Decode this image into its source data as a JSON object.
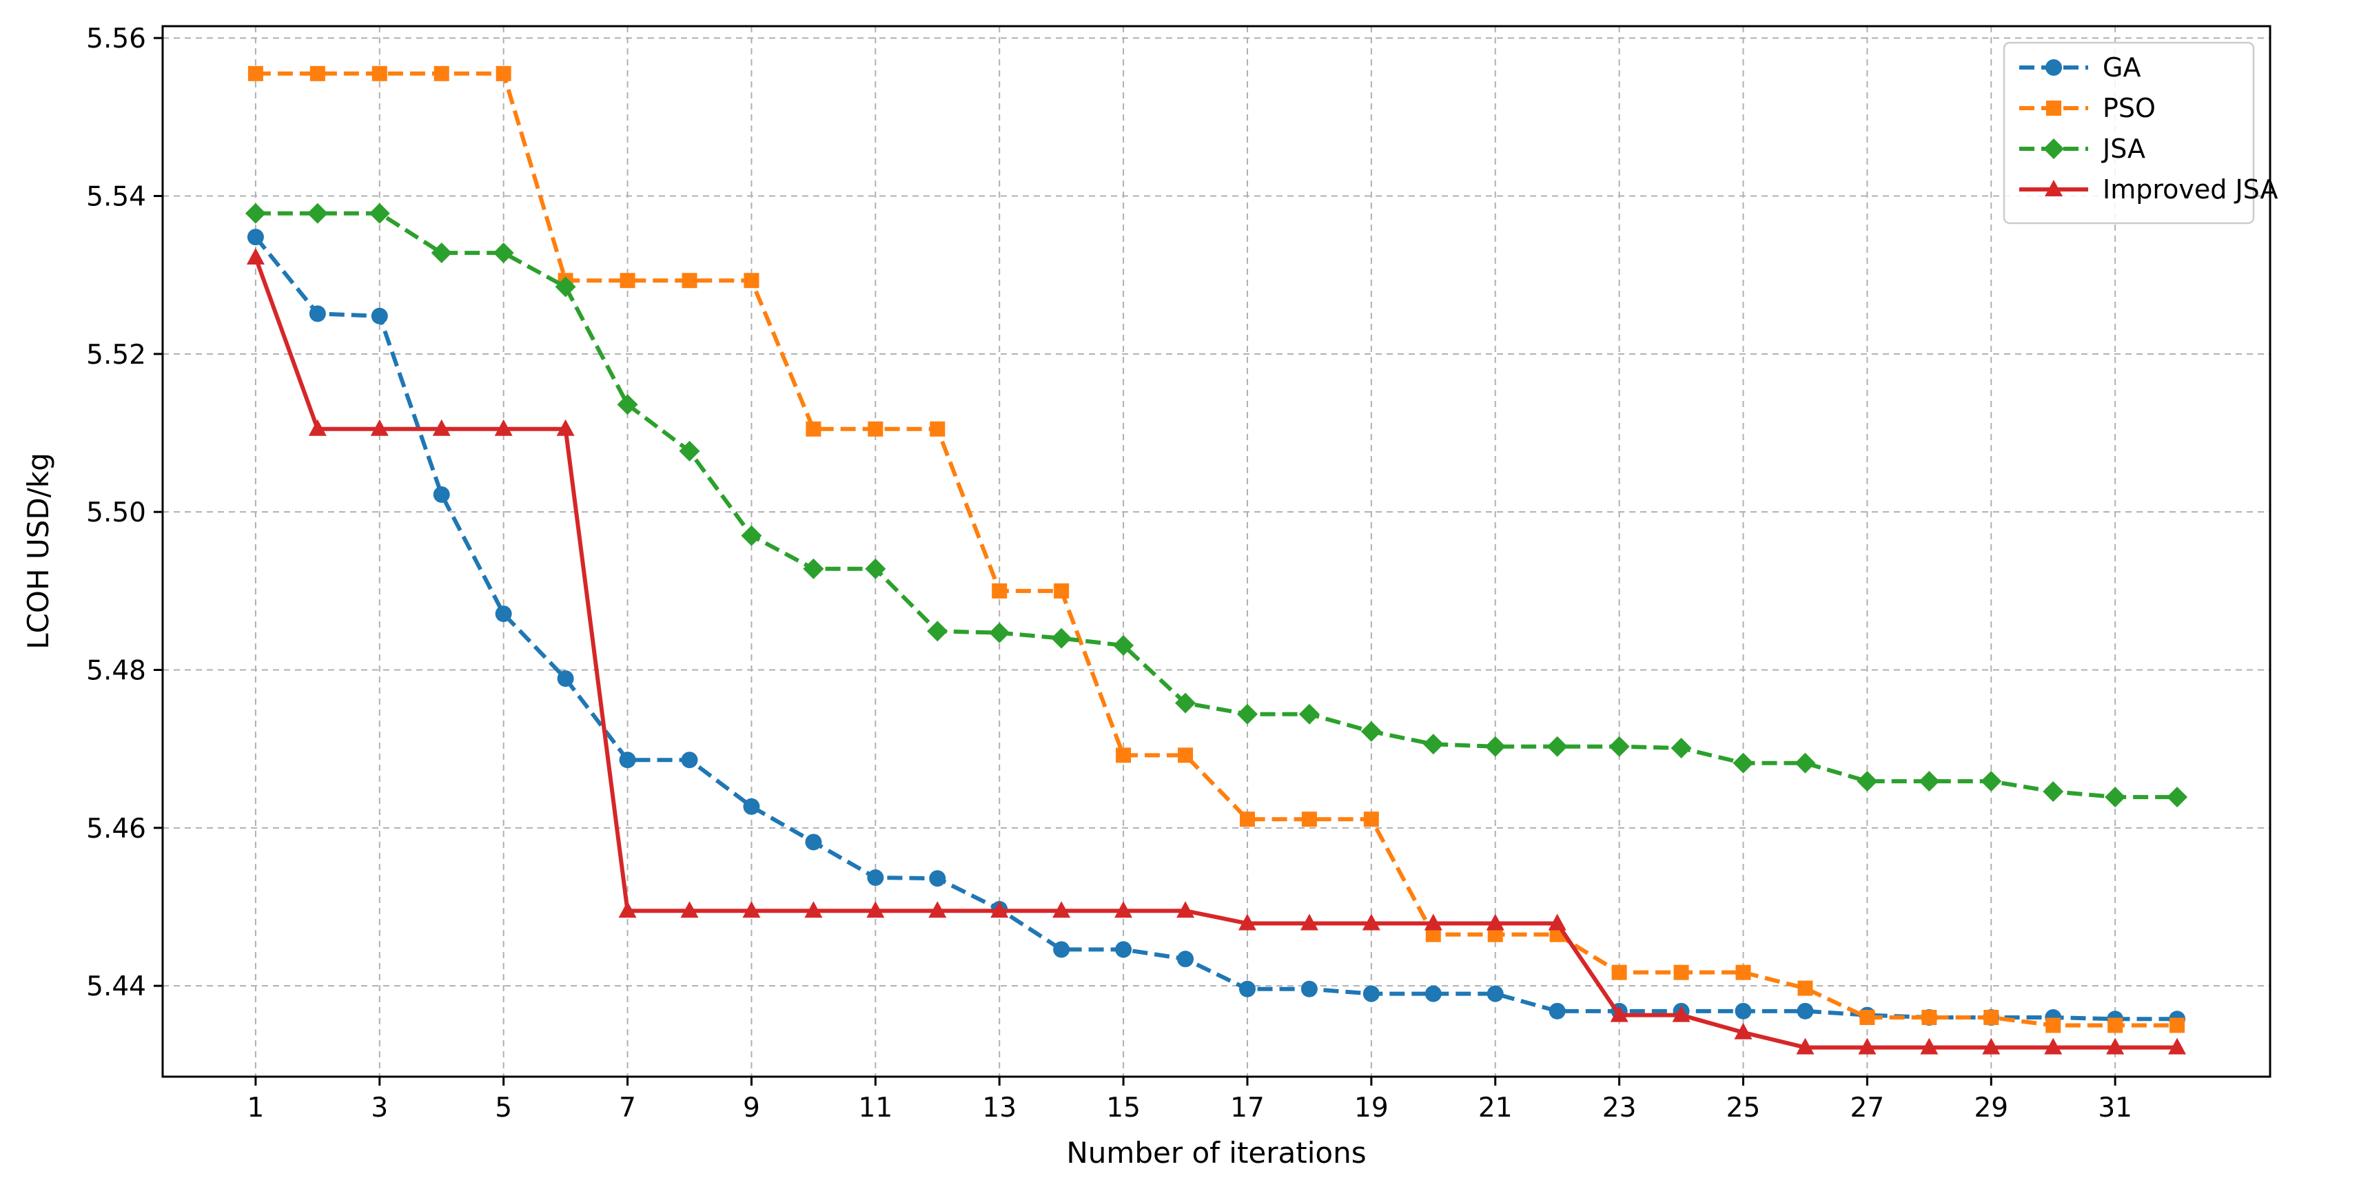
{
  "chart_data": {
    "type": "line",
    "xlabel": "Number of iterations",
    "ylabel": "LCOH  USD/kg",
    "xlim": [
      -0.5,
      33.5
    ],
    "ylim": [
      5.4285,
      5.5615
    ],
    "x_ticks": [
      1,
      3,
      5,
      7,
      9,
      11,
      13,
      15,
      17,
      19,
      21,
      23,
      25,
      27,
      29,
      31
    ],
    "y_ticks": [
      5.44,
      5.46,
      5.48,
      5.5,
      5.52,
      5.54,
      5.56
    ],
    "y_tick_labels": [
      "5.44",
      "5.46",
      "5.48",
      "5.50",
      "5.52",
      "5.54",
      "5.56"
    ],
    "grid": true,
    "legend_position": "top-right",
    "x": [
      1,
      2,
      3,
      4,
      5,
      6,
      7,
      8,
      9,
      10,
      11,
      12,
      13,
      14,
      15,
      16,
      17,
      18,
      19,
      20,
      21,
      22,
      23,
      24,
      25,
      26,
      27,
      28,
      29,
      30,
      31,
      32
    ],
    "series": [
      {
        "name": "GA",
        "color": "#1f77b4",
        "marker": "circle",
        "linestyle": "dashed",
        "values": [
          5.5348,
          5.5251,
          5.5248,
          5.5022,
          5.4871,
          5.4789,
          5.4686,
          5.4686,
          5.4627,
          5.4582,
          5.4537,
          5.4536,
          5.4497,
          5.4446,
          5.4446,
          5.4434,
          5.4396,
          5.4396,
          5.439,
          5.439,
          5.439,
          5.4368,
          5.4368,
          5.4368,
          5.4368,
          5.4368,
          5.4363,
          5.436,
          5.436,
          5.436,
          5.4358,
          5.4358
        ]
      },
      {
        "name": "PSO",
        "color": "#ff7f0e",
        "marker": "square",
        "linestyle": "dashed",
        "values": [
          5.5555,
          5.5555,
          5.5555,
          5.5555,
          5.5555,
          5.5293,
          5.5293,
          5.5293,
          5.5293,
          5.5105,
          5.5105,
          5.5105,
          5.49,
          5.49,
          5.4692,
          5.4692,
          5.4611,
          5.4611,
          5.4611,
          5.4465,
          5.4465,
          5.4465,
          5.4417,
          5.4417,
          5.4417,
          5.4397,
          5.436,
          5.436,
          5.436,
          5.435,
          5.435,
          5.435
        ]
      },
      {
        "name": "JSA",
        "color": "#2ca02c",
        "marker": "diamond",
        "linestyle": "dashed",
        "values": [
          5.5378,
          5.5378,
          5.5378,
          5.5328,
          5.5328,
          5.5285,
          5.5136,
          5.5077,
          5.497,
          5.4928,
          5.4928,
          5.4849,
          5.4847,
          5.484,
          5.4831,
          5.4758,
          5.4744,
          5.4744,
          5.4722,
          5.4706,
          5.4703,
          5.4703,
          5.4703,
          5.4701,
          5.4682,
          5.4682,
          5.4659,
          5.4659,
          5.4659,
          5.4646,
          5.4639,
          5.4639
        ]
      },
      {
        "name": "Improved JSA",
        "color": "#d62728",
        "marker": "triangle",
        "linestyle": "solid",
        "values": [
          5.5322,
          5.5105,
          5.5105,
          5.5105,
          5.5105,
          5.5105,
          5.4495,
          5.4495,
          5.4495,
          5.4495,
          5.4495,
          5.4495,
          5.4495,
          5.4495,
          5.4495,
          5.4495,
          5.4479,
          5.4479,
          5.4479,
          5.4479,
          5.4479,
          5.4479,
          5.4363,
          5.4363,
          5.4341,
          5.4322,
          5.4322,
          5.4322,
          5.4322,
          5.4322,
          5.4322,
          5.4322
        ]
      }
    ]
  }
}
